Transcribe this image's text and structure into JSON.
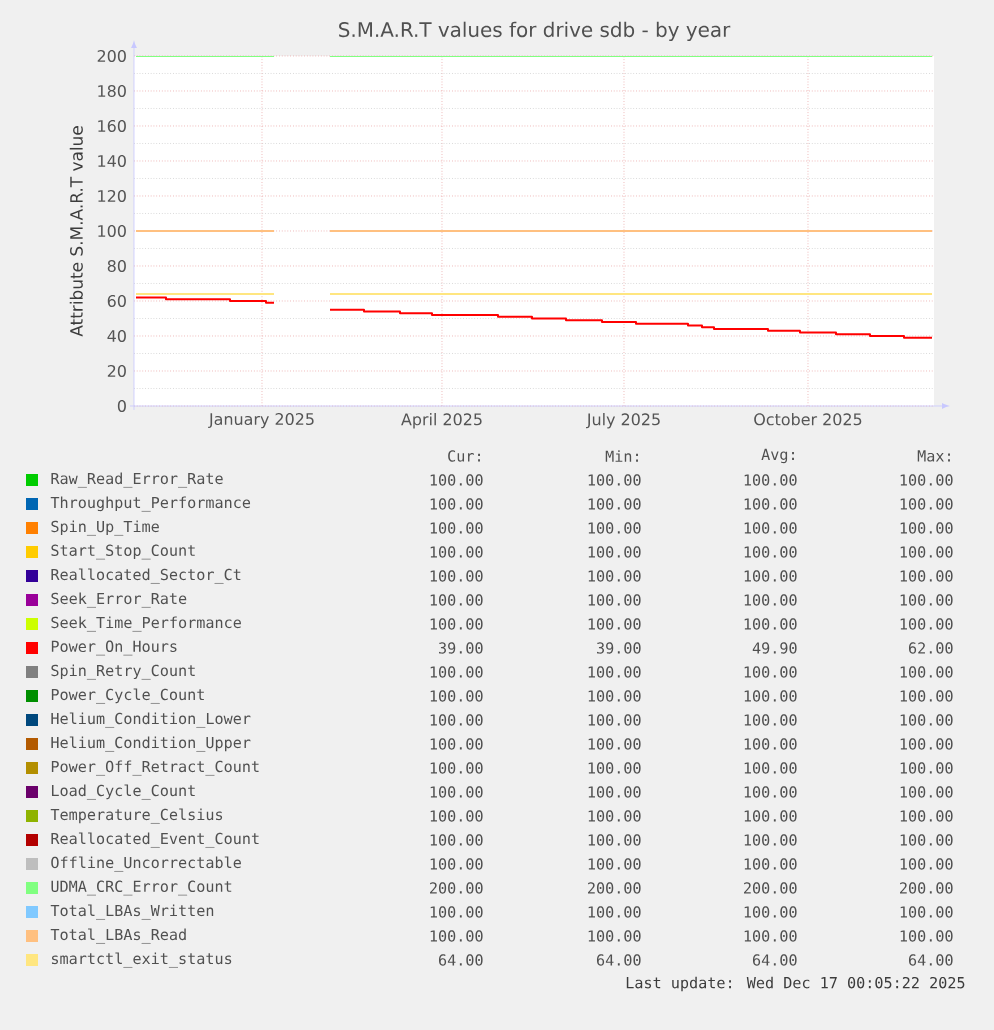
{
  "chart_data": {
    "type": "line",
    "title": "S.M.A.R.T values for drive sdb - by year",
    "ylabel": "Attribute S.M.A.R.T value",
    "x": [
      "2024-11-13",
      "2025-01-21",
      "2025-02-01",
      "2025-02-18",
      "2025-12-16"
    ],
    "xlim": [
      "2024-11-12",
      "2025-12-17"
    ],
    "xticks": [
      {
        "value": "2025-01-15",
        "label": "January 2025"
      },
      {
        "value": "2025-04-15",
        "label": "April 2025"
      },
      {
        "value": "2025-07-15",
        "label": "July 2025"
      },
      {
        "value": "2025-10-15",
        "label": "October 2025"
      }
    ],
    "ylim": [
      0,
      200
    ],
    "yticks": [
      0,
      20,
      40,
      60,
      80,
      100,
      120,
      140,
      160,
      180,
      200
    ],
    "grid": true,
    "legend": "bottom",
    "series": [
      {
        "name": "Raw_Read_Error_Rate",
        "color": "#00cc00",
        "values": [
          null,
          null,
          null,
          null,
          null
        ]
      },
      {
        "name": "Throughput_Performance",
        "color": "#0066b3",
        "values": [
          null,
          null,
          null,
          null,
          null
        ]
      },
      {
        "name": "Spin_Up_Time",
        "color": "#ff8000",
        "values": [
          null,
          null,
          null,
          null,
          null
        ]
      },
      {
        "name": "Start_Stop_Count",
        "color": "#ffcc00",
        "values": [
          null,
          null,
          null,
          null,
          null
        ]
      },
      {
        "name": "Reallocated_Sector_Ct",
        "color": "#330099",
        "values": [
          null,
          null,
          null,
          null,
          null
        ]
      },
      {
        "name": "Seek_Error_Rate",
        "color": "#990099",
        "values": [
          null,
          null,
          null,
          null,
          null
        ]
      },
      {
        "name": "Seek_Time_Performance",
        "color": "#ccff00",
        "values": [
          null,
          null,
          null,
          null,
          null
        ]
      },
      {
        "name": "Power_On_Hours",
        "color": "#ff0000",
        "type": "step",
        "x": [
          "2024-11-13",
          "2024-11-28",
          "2024-12-30",
          "2025-01-17",
          "2025-01-21",
          "2025-02-01",
          "2025-02-18",
          "2025-03-07",
          "2025-03-25",
          "2025-04-10",
          "2025-05-13",
          "2025-05-30",
          "2025-06-16",
          "2025-07-04",
          "2025-07-21",
          "2025-08-16",
          "2025-08-23",
          "2025-08-29",
          "2025-09-25",
          "2025-10-11",
          "2025-10-29",
          "2025-11-15",
          "2025-12-02",
          "2025-12-16"
        ],
        "values": [
          62,
          61,
          60,
          59,
          59,
          null,
          55,
          54,
          53,
          52,
          51,
          50,
          49,
          48,
          47,
          46,
          45,
          44,
          43,
          42,
          41,
          40,
          39,
          39
        ]
      },
      {
        "name": "Spin_Retry_Count",
        "color": "#808080",
        "values": [
          null,
          null,
          null,
          null,
          null
        ]
      },
      {
        "name": "Power_Cycle_Count",
        "color": "#008f00",
        "values": [
          null,
          null,
          null,
          null,
          null
        ]
      },
      {
        "name": "Helium_Condition_Lower",
        "color": "#00487d",
        "values": [
          null,
          null,
          null,
          null,
          null
        ]
      },
      {
        "name": "Helium_Condition_Upper",
        "color": "#b35a00",
        "values": [
          null,
          null,
          null,
          null,
          null
        ]
      },
      {
        "name": "Power_Off_Retract_Count",
        "color": "#b38f00",
        "values": [
          null,
          null,
          null,
          null,
          null
        ]
      },
      {
        "name": "Load_Cycle_Count",
        "color": "#6b006b",
        "values": [
          null,
          null,
          null,
          null,
          null
        ]
      },
      {
        "name": "Temperature_Celsius",
        "color": "#8fb300",
        "values": [
          null,
          null,
          null,
          null,
          null
        ]
      },
      {
        "name": "Reallocated_Event_Count",
        "color": "#b30000",
        "values": [
          null,
          null,
          null,
          null,
          null
        ]
      },
      {
        "name": "Offline_Uncorrectable",
        "color": "#bebebe",
        "values": [
          null,
          null,
          null,
          null,
          null
        ]
      },
      {
        "name": "UDMA_CRC_Error_Count",
        "color": "#80ff80",
        "values": [
          200,
          200,
          null,
          200,
          200
        ]
      },
      {
        "name": "Total_LBAs_Written",
        "color": "#80c9ff",
        "values": [
          null,
          null,
          null,
          null,
          null
        ]
      },
      {
        "name": "Total_LBAs_Read",
        "color": "#ffc080",
        "values": [
          100,
          100,
          null,
          100,
          100
        ]
      },
      {
        "name": "smartctl_exit_status",
        "color": "#ffe680",
        "values": [
          64,
          64,
          null,
          64,
          64
        ]
      }
    ],
    "annotations": [
      "Cur:",
      "Min:",
      "Avg:",
      "Max:",
      "100.00",
      "100.00",
      "100.00",
      "100.00",
      "100.00",
      "100.00",
      "100.00",
      "100.00",
      "100.00",
      "100.00",
      "100.00",
      "100.00",
      "100.00",
      "100.00",
      "100.00",
      "100.00",
      "100.00",
      "100.00",
      "100.00",
      "100.00",
      "100.00",
      "100.00",
      "100.00",
      "100.00",
      "100.00",
      "100.00",
      "100.00",
      "100.00",
      "39.00",
      "39.00",
      "49.90",
      "62.00",
      "100.00",
      "100.00",
      "100.00",
      "100.00",
      "100.00",
      "100.00",
      "100.00",
      "100.00",
      "100.00",
      "100.00",
      "100.00",
      "100.00",
      "100.00",
      "100.00",
      "100.00",
      "100.00",
      "100.00",
      "100.00",
      "100.00",
      "100.00",
      "100.00",
      "100.00",
      "100.00",
      "100.00",
      "100.00",
      "100.00",
      "100.00",
      "100.00",
      "100.00",
      "100.00",
      "100.00",
      "100.00",
      "100.00",
      "100.00",
      "100.00",
      "100.00",
      "200.00",
      "200.00",
      "200.00",
      "200.00",
      "100.00",
      "100.00",
      "100.00",
      "100.00",
      "100.00",
      "100.00",
      "100.00",
      "100.00",
      "64.00",
      "64.00",
      "64.00",
      "64.00",
      "Last update: Wed Dec 17 00:05:22 2025"
    ]
  }
}
